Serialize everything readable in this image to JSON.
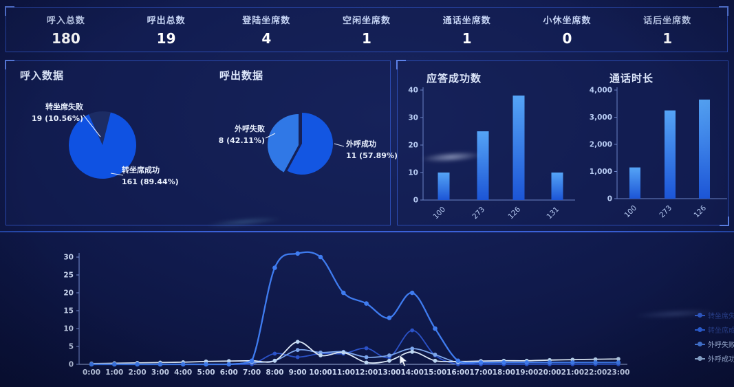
{
  "kpis": [
    {
      "label": "呼入总数",
      "value": "180"
    },
    {
      "label": "呼出总数",
      "value": "19"
    },
    {
      "label": "登陆坐席数",
      "value": "4"
    },
    {
      "label": "空闲坐席数",
      "value": "1"
    },
    {
      "label": "通话坐席数",
      "value": "1"
    },
    {
      "label": "小休坐席数",
      "value": "0"
    },
    {
      "label": "话后坐席数",
      "value": "1"
    }
  ],
  "colors": {
    "panel_border": "#2c4cb4",
    "pie_main_blue": "#0f52e2",
    "pie_light_blue": "#3078e6",
    "pie_gap_dark": "#1c2c64",
    "bar_top": "#55a4f6",
    "bar_bottom": "#1c55d6",
    "axis_line": "#6c84c6",
    "axis_text": "#b9cdf4"
  },
  "chart_data": [
    {
      "type": "pie",
      "title": "呼入数据",
      "slices": [
        {
          "name": "转坐席失败",
          "value": 19,
          "pct": "10.56%",
          "label_value": "19 (10.56%)",
          "color": "#1c2c64"
        },
        {
          "name": "转坐席成功",
          "value": 161,
          "pct": "89.44%",
          "label_value": "161 (89.44%)",
          "color": "#0f52e2"
        }
      ]
    },
    {
      "type": "pie",
      "title": "呼出数据",
      "slices": [
        {
          "name": "外呼失败",
          "value": 8,
          "pct": "42.11%",
          "label_value": "8 (42.11%)",
          "color": "#3078e6"
        },
        {
          "name": "外呼成功",
          "value": 11,
          "pct": "57.89%",
          "label_value": "11 (57.89%)",
          "color": "#1356e2"
        }
      ]
    },
    {
      "type": "bar",
      "title": "应答成功数",
      "categories": [
        "100",
        "273",
        "126",
        "131"
      ],
      "values": [
        10,
        25,
        38,
        10
      ],
      "ylim": [
        0,
        40
      ],
      "yticks": [
        "0",
        "10",
        "20",
        "30",
        "40"
      ]
    },
    {
      "type": "bar",
      "title": "通话时长",
      "categories": [
        "100",
        "273",
        "126"
      ],
      "values": [
        1150,
        3250,
        3650
      ],
      "ylim": [
        0,
        4000
      ],
      "yticks": [
        "0",
        "1,000",
        "2,000",
        "3,000",
        "4,000"
      ]
    },
    {
      "type": "line",
      "x": [
        "0:00",
        "1:00",
        "2:00",
        "3:00",
        "4:00",
        "5:00",
        "6:00",
        "7:00",
        "8:00",
        "9:00",
        "10:00",
        "11:00",
        "12:00",
        "13:00",
        "14:00",
        "15:00",
        "16:00",
        "17:00",
        "18:00",
        "19:00",
        "20:00",
        "21:00",
        "22:00",
        "23:00"
      ],
      "ylim": [
        0,
        30
      ],
      "yticks": [
        0,
        5,
        10,
        15,
        20,
        25,
        30
      ],
      "series": [
        {
          "name": "转坐席失败数",
          "color": "#2b52c8",
          "values": [
            0,
            0,
            0,
            0,
            0,
            0,
            0,
            0,
            3,
            2,
            3,
            3,
            4.5,
            2,
            9.5,
            2.5,
            0,
            0,
            0,
            0,
            0,
            0,
            0,
            0
          ]
        },
        {
          "name": "转坐席成功数",
          "color": "#3f7cf0",
          "values": [
            0,
            0,
            0,
            0,
            0,
            0,
            0,
            1,
            27,
            31,
            30,
            20,
            17,
            13,
            20,
            10,
            1,
            0.5,
            0.5,
            0.5,
            0.5,
            0.5,
            0.5,
            0.5
          ]
        },
        {
          "name": "外呼失败数",
          "color": "#7da6ec",
          "values": [
            0,
            0,
            0,
            0,
            0,
            0,
            0,
            0.5,
            1,
            4,
            3.3,
            3.5,
            2,
            2.5,
            4.4,
            2.7,
            0.5,
            0.5,
            0.5,
            0.5,
            0.5,
            0.5,
            0.5,
            0.5
          ]
        },
        {
          "name": "外呼成功数",
          "color": "#dde9f8",
          "values": [
            0.2,
            0.3,
            0.4,
            0.5,
            0.6,
            0.8,
            0.9,
            1,
            1,
            6.3,
            2.5,
            3.3,
            0.5,
            1,
            3.5,
            1,
            0.8,
            0.9,
            1,
            1,
            1.2,
            1.3,
            1.4,
            1.5
          ]
        }
      ],
      "legend": [
        {
          "label": "转坐席失败数",
          "dim": true,
          "marker": "#2f5cd0"
        },
        {
          "label": "转坐席成功数",
          "dim": true,
          "marker": "#2f66e4"
        },
        {
          "label": "外呼失败数",
          "dim": false,
          "marker": "#4b82e8"
        },
        {
          "label": "外呼成功数",
          "dim": false,
          "marker": "#9fc0ea"
        }
      ]
    }
  ]
}
